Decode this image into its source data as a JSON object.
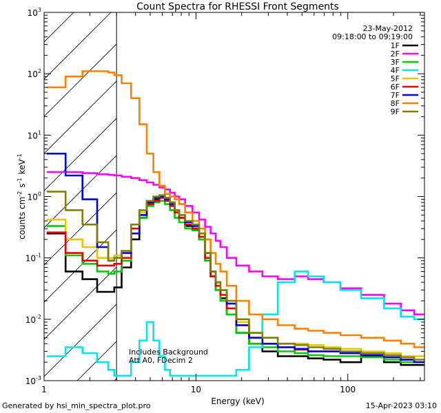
{
  "chart_data": {
    "type": "line",
    "title": "Count Spectra for RHESSI Front Segments",
    "xlabel": "Energy (keV)",
    "ylabel": "counts cm^-2 s^-1 keV^-1",
    "xscale": "log",
    "yscale": "log",
    "xlim": [
      1.0,
      320.0
    ],
    "ylim": [
      0.001,
      1000.0
    ],
    "x_tick_labels": [
      "1",
      "10",
      "100"
    ],
    "y_tick_labels": [
      "10^-3",
      "10^-2",
      "10^-1",
      "10^0",
      "10^1",
      "10^2",
      "10^3"
    ],
    "legend_position": "top-right",
    "header_lines": [
      "23-May-2012",
      "09:18:00 to 09:19:00"
    ],
    "annotations": [
      "Includes Background",
      "Att A0, FDecim 2"
    ],
    "excluded_region_max_kev": 3.0,
    "x": [
      1.2,
      1.6,
      2.0,
      2.5,
      2.8,
      3.0,
      3.5,
      4.0,
      4.5,
      5.0,
      5.5,
      6.0,
      6.5,
      7.0,
      7.5,
      8.0,
      9.0,
      10.0,
      11.0,
      12.0,
      13.0,
      14.0,
      15.0,
      17.0,
      20.0,
      25.0,
      30.0,
      40.0,
      50.0,
      60.0,
      80.0,
      100.0,
      150.0,
      200.0,
      250.0,
      300.0
    ],
    "series": [
      {
        "name": "1F",
        "color": "#000000",
        "values": [
          0.25,
          0.06,
          0.045,
          0.028,
          0.028,
          0.033,
          0.07,
          0.2,
          0.45,
          0.75,
          0.9,
          1.0,
          0.95,
          0.8,
          0.6,
          0.45,
          0.33,
          0.3,
          0.2,
          0.09,
          0.05,
          0.03,
          0.022,
          0.012,
          0.006,
          0.004,
          0.003,
          0.0025,
          0.0025,
          0.0023,
          0.0022,
          0.002,
          0.0025,
          0.002,
          0.0018,
          0.0018
        ]
      },
      {
        "name": "2F",
        "color": "#ff00ff",
        "values": [
          2.5,
          2.5,
          2.4,
          2.3,
          2.25,
          2.2,
          2.1,
          2.0,
          1.85,
          1.7,
          1.55,
          1.4,
          1.3,
          1.15,
          1.0,
          0.9,
          0.7,
          0.55,
          0.42,
          0.32,
          0.25,
          0.19,
          0.15,
          0.1,
          0.075,
          0.06,
          0.05,
          0.045,
          0.05,
          0.045,
          0.04,
          0.032,
          0.025,
          0.018,
          0.014,
          0.012
        ]
      },
      {
        "name": "3F",
        "color": "#00cc00",
        "values": [
          0.33,
          0.11,
          0.08,
          0.06,
          0.055,
          0.06,
          0.09,
          0.25,
          0.45,
          0.7,
          0.8,
          0.85,
          0.75,
          0.6,
          0.45,
          0.38,
          0.3,
          0.28,
          0.2,
          0.09,
          0.05,
          0.03,
          0.02,
          0.012,
          0.006,
          0.004,
          0.0035,
          0.003,
          0.0028,
          0.0026,
          0.0025,
          0.0025,
          0.0024,
          0.0022,
          0.002,
          0.002
        ]
      },
      {
        "name": "4F",
        "color": "#00e5e5",
        "values": [
          0.0025,
          0.0035,
          0.0028,
          0.002,
          0.0015,
          0.0012,
          0.0012,
          0.002,
          0.0045,
          0.009,
          0.0045,
          0.0025,
          0.0015,
          0.0012,
          0.0012,
          0.0012,
          0.0012,
          0.0012,
          0.0012,
          0.0012,
          0.0012,
          0.0012,
          0.0012,
          0.0012,
          0.0015,
          0.0035,
          0.012,
          0.04,
          0.06,
          0.05,
          0.04,
          0.03,
          0.022,
          0.015,
          0.011,
          0.01
        ]
      },
      {
        "name": "5F",
        "color": "#e5c800",
        "values": [
          0.42,
          0.2,
          0.15,
          0.1,
          0.1,
          0.11,
          0.13,
          0.3,
          0.55,
          0.8,
          0.95,
          1.0,
          0.9,
          0.75,
          0.6,
          0.5,
          0.4,
          0.35,
          0.25,
          0.12,
          0.06,
          0.04,
          0.03,
          0.018,
          0.009,
          0.006,
          0.005,
          0.004,
          0.004,
          0.0038,
          0.0035,
          0.0033,
          0.003,
          0.0028,
          0.0025,
          0.0025
        ]
      },
      {
        "name": "6F",
        "color": "#e50000",
        "values": [
          0.26,
          0.12,
          0.09,
          0.075,
          0.075,
          0.08,
          0.1,
          0.3,
          0.5,
          0.75,
          0.85,
          0.95,
          0.85,
          0.7,
          0.55,
          0.45,
          0.35,
          0.3,
          0.22,
          0.1,
          0.05,
          0.035,
          0.025,
          0.015,
          0.008,
          0.005,
          0.004,
          0.0035,
          0.0032,
          0.003,
          0.003,
          0.0028,
          0.0026,
          0.0024,
          0.0022,
          0.002
        ]
      },
      {
        "name": "7F",
        "color": "#0000e5",
        "values": [
          5.0,
          2.2,
          0.9,
          0.15,
          0.09,
          0.1,
          0.12,
          0.25,
          0.5,
          0.8,
          0.95,
          1.0,
          0.9,
          0.75,
          0.6,
          0.5,
          0.38,
          0.33,
          0.25,
          0.12,
          0.06,
          0.04,
          0.03,
          0.018,
          0.008,
          0.005,
          0.004,
          0.0035,
          0.0033,
          0.003,
          0.003,
          0.0028,
          0.0026,
          0.0024,
          0.0022,
          0.002
        ]
      },
      {
        "name": "8F",
        "color": "#ff8000",
        "values": [
          60.0,
          90.0,
          110.0,
          110.0,
          105.0,
          95.0,
          70.0,
          40.0,
          15.0,
          5.0,
          2.5,
          1.5,
          1.1,
          1.0,
          0.9,
          0.75,
          0.55,
          0.4,
          0.3,
          0.2,
          0.12,
          0.08,
          0.06,
          0.035,
          0.02,
          0.012,
          0.01,
          0.008,
          0.007,
          0.0065,
          0.006,
          0.0055,
          0.005,
          0.0045,
          0.004,
          0.0035
        ]
      },
      {
        "name": "9F",
        "color": "#808000",
        "values": [
          1.2,
          0.6,
          0.35,
          0.18,
          0.09,
          0.1,
          0.13,
          0.35,
          0.6,
          0.85,
          1.0,
          1.05,
          0.95,
          0.8,
          0.6,
          0.5,
          0.4,
          0.35,
          0.25,
          0.12,
          0.06,
          0.04,
          0.03,
          0.02,
          0.01,
          0.006,
          0.005,
          0.004,
          0.0038,
          0.0035,
          0.0033,
          0.003,
          0.0028,
          0.0026,
          0.0024,
          0.0022
        ]
      }
    ]
  },
  "footer": {
    "generator": "Generated by hsi_min_spectra_plot.pro",
    "timestamp": "15-Apr-2023 03:10"
  }
}
